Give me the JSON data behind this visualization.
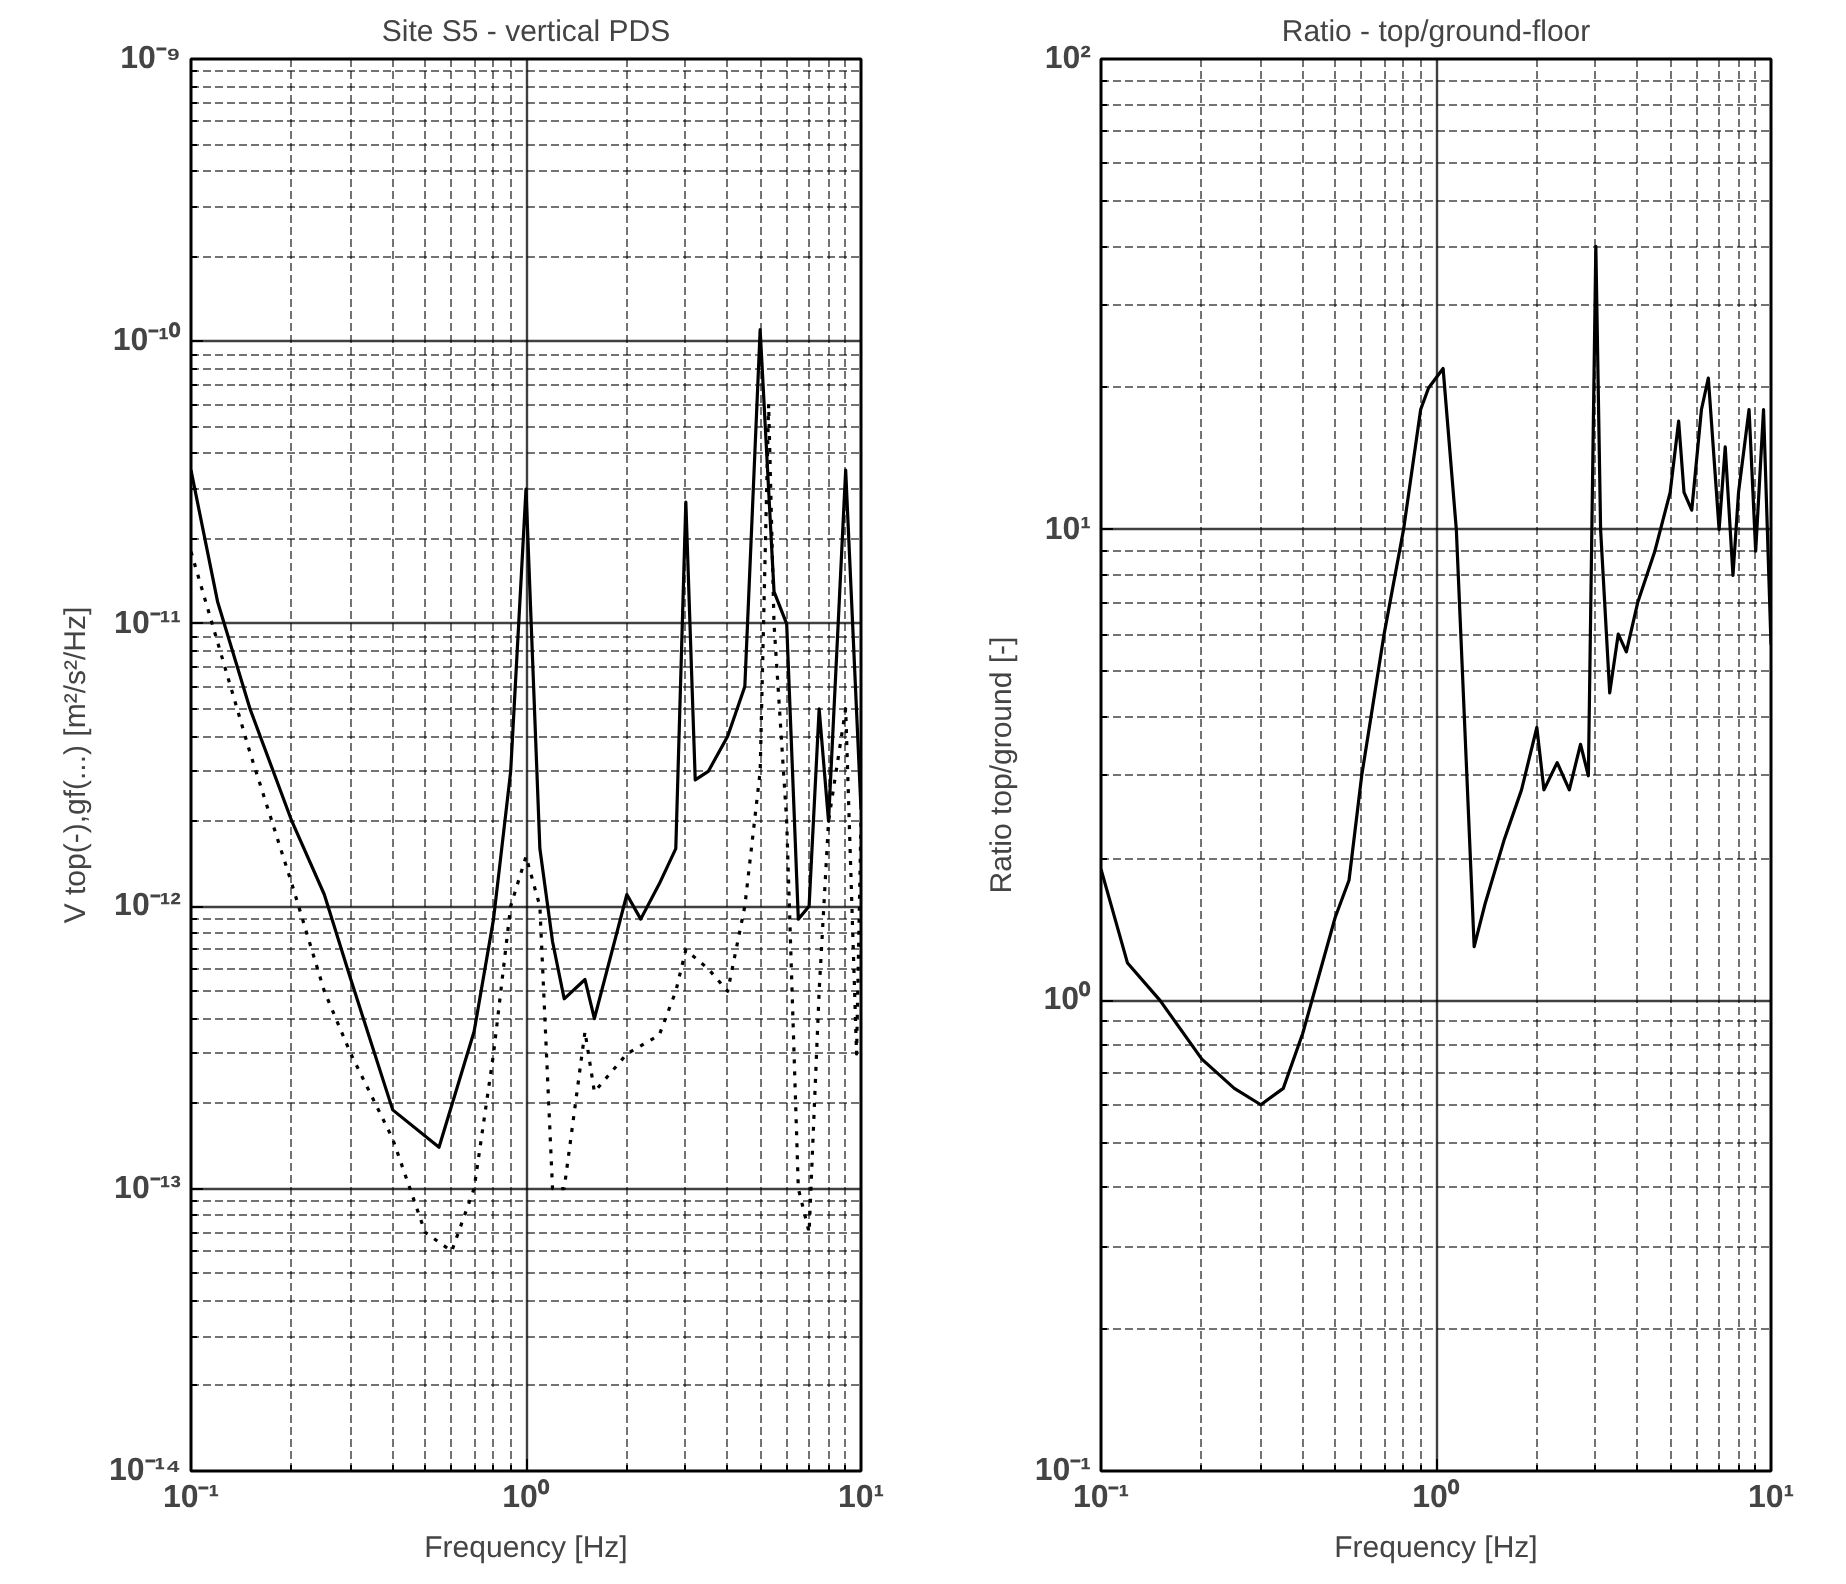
{
  "chart_data": [
    {
      "type": "line",
      "title": "Site S5 - vertical PDS",
      "xlabel": "Frequency [Hz]",
      "ylabel": "V top(-),gf(...) [m²/s²/Hz]",
      "log": "xy",
      "grid": true,
      "xlim": [
        0.1,
        10
      ],
      "ylim": [
        1e-14,
        1e-09
      ],
      "xticks": [
        {
          "value": 0.1,
          "label": "10⁻¹"
        },
        {
          "value": 1,
          "label": "10⁰"
        },
        {
          "value": 10,
          "label": "10¹"
        }
      ],
      "yticks": [
        {
          "value": 1e-14,
          "label": "10⁻¹⁴"
        },
        {
          "value": 1e-13,
          "label": "10⁻¹³"
        },
        {
          "value": 1e-12,
          "label": "10⁻¹²"
        },
        {
          "value": 1e-11,
          "label": "10⁻¹¹"
        },
        {
          "value": 1e-10,
          "label": "10⁻¹⁰"
        },
        {
          "value": 1e-09,
          "label": "10⁻⁹"
        }
      ],
      "series": [
        {
          "color": "#000000",
          "line_style": "solid",
          "x": [
            0.1,
            0.12,
            0.15,
            0.2,
            0.25,
            0.3,
            0.4,
            0.55,
            0.7,
            0.8,
            0.9,
            1.0,
            1.1,
            1.2,
            1.3,
            1.5,
            1.6,
            2.0,
            2.2,
            2.5,
            2.8,
            3.0,
            3.2,
            3.5,
            4.0,
            4.5,
            5.0,
            5.5,
            6.0,
            6.5,
            7.0,
            7.5,
            8.0,
            9.0,
            10.0
          ],
          "values": [
            3.5e-11,
            1.2e-11,
            5e-12,
            2e-12,
            1.1e-12,
            5.5e-13,
            1.9e-13,
            1.4e-13,
            3.6e-13,
            9e-13,
            3e-12,
            3e-11,
            1.6e-12,
            7.5e-13,
            4.7e-13,
            5.5e-13,
            4e-13,
            1.1e-12,
            9e-13,
            1.2e-12,
            1.6e-12,
            2.7e-11,
            2.8e-12,
            3e-12,
            4e-12,
            6e-12,
            1.1e-10,
            1.3e-11,
            1e-11,
            9e-13,
            1e-12,
            5e-12,
            2e-12,
            3.5e-11,
            2.2e-12
          ]
        },
        {
          "color": "#000000",
          "line_style": "dotted",
          "x": [
            0.1,
            0.15,
            0.2,
            0.25,
            0.3,
            0.4,
            0.5,
            0.6,
            0.7,
            0.8,
            0.9,
            1.0,
            1.1,
            1.2,
            1.3,
            1.5,
            1.6,
            2.0,
            2.5,
            2.8,
            3.0,
            3.5,
            4.0,
            4.5,
            5.0,
            5.3,
            5.5,
            6.0,
            6.5,
            7.0,
            7.5,
            8.0,
            9.0,
            9.7,
            10.0
          ],
          "values": [
            1.8e-11,
            3.5e-12,
            1.2e-12,
            5e-13,
            3e-13,
            1.5e-13,
            7e-14,
            6e-14,
            1e-13,
            3e-13,
            1e-12,
            1.5e-12,
            1e-12,
            1e-13,
            1e-13,
            3.6e-13,
            2.2e-13,
            3e-13,
            3.5e-13,
            5e-13,
            7e-13,
            6e-13,
            5e-13,
            1e-12,
            3e-12,
            6e-11,
            1e-11,
            2e-12,
            1e-13,
            7e-14,
            5e-13,
            2e-12,
            5e-12,
            3e-13,
            2e-12
          ]
        }
      ]
    },
    {
      "type": "line",
      "title": "Ratio - top/ground-floor",
      "xlabel": "Frequency [Hz]",
      "ylabel": "Ratio top/ground [-]",
      "log": "xy",
      "grid": true,
      "xlim": [
        0.1,
        10
      ],
      "ylim": [
        0.1,
        100
      ],
      "xticks": [
        {
          "value": 0.1,
          "label": "10⁻¹"
        },
        {
          "value": 1,
          "label": "10⁰"
        },
        {
          "value": 10,
          "label": "10¹"
        }
      ],
      "yticks": [
        {
          "value": 0.1,
          "label": "10⁻¹"
        },
        {
          "value": 1,
          "label": "10⁰"
        },
        {
          "value": 10,
          "label": "10¹"
        },
        {
          "value": 100,
          "label": "10²"
        }
      ],
      "series": [
        {
          "color": "#000000",
          "line_style": "solid",
          "x": [
            0.1,
            0.12,
            0.15,
            0.2,
            0.25,
            0.3,
            0.35,
            0.4,
            0.5,
            0.55,
            0.6,
            0.7,
            0.8,
            0.9,
            0.95,
            1.05,
            1.15,
            1.3,
            1.4,
            1.6,
            1.8,
            2.0,
            2.1,
            2.3,
            2.5,
            2.7,
            2.85,
            3.0,
            3.1,
            3.3,
            3.5,
            3.7,
            4.0,
            4.5,
            5.0,
            5.3,
            5.5,
            5.8,
            6.2,
            6.5,
            7.0,
            7.3,
            7.7,
            8.0,
            8.6,
            9.0,
            9.5,
            10.0
          ],
          "values": [
            1.9,
            1.2,
            1.0,
            0.75,
            0.65,
            0.6,
            0.65,
            0.85,
            1.5,
            1.8,
            3,
            6,
            10,
            18,
            20,
            22,
            10,
            1.3,
            1.6,
            2.2,
            2.8,
            3.8,
            2.8,
            3.2,
            2.8,
            3.5,
            3,
            40,
            10,
            4.5,
            6,
            5.5,
            7,
            9,
            12,
            17,
            12,
            11,
            18,
            21,
            10,
            15,
            8,
            12,
            18,
            9,
            18,
            5.7
          ]
        }
      ]
    }
  ]
}
